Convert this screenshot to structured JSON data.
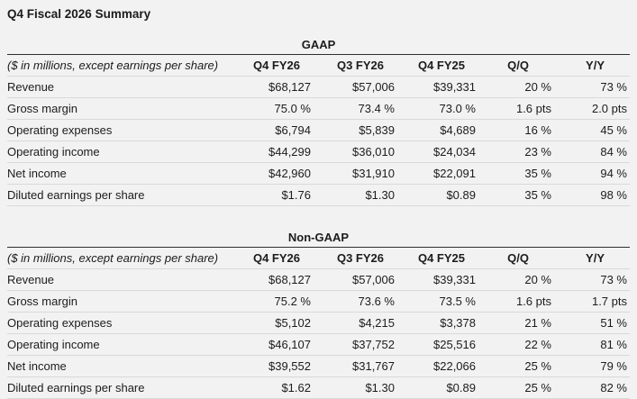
{
  "page_title": "Q4 Fiscal 2026 Summary",
  "colors": {
    "background": "#f2f2f2",
    "text": "#1c1c1c",
    "rule_dark": "#2e2e2e",
    "rule_light": "#d9d9d9"
  },
  "tables": [
    {
      "section_title": "GAAP",
      "note": "($ in millions, except earnings per share)",
      "columns": [
        "Q4 FY26",
        "Q3 FY26",
        "Q4 FY25",
        "Q/Q",
        "Y/Y"
      ],
      "rows": [
        {
          "label": "Revenue",
          "values": [
            "$68,127",
            "$57,006",
            "$39,331",
            "20 %",
            "73 %"
          ]
        },
        {
          "label": "Gross margin",
          "values": [
            "75.0 %",
            "73.4 %",
            "73.0 %",
            "1.6 pts",
            "2.0 pts"
          ]
        },
        {
          "label": "Operating expenses",
          "values": [
            "$6,794",
            "$5,839",
            "$4,689",
            "16 %",
            "45 %"
          ]
        },
        {
          "label": "Operating income",
          "values": [
            "$44,299",
            "$36,010",
            "$24,034",
            "23 %",
            "84 %"
          ]
        },
        {
          "label": "Net income",
          "values": [
            "$42,960",
            "$31,910",
            "$22,091",
            "35 %",
            "94 %"
          ]
        },
        {
          "label": "Diluted earnings per share",
          "values": [
            "$1.76",
            "$1.30",
            "$0.89",
            "35 %",
            "98 %"
          ]
        }
      ]
    },
    {
      "section_title": "Non-GAAP",
      "note": "($ in millions, except earnings per share)",
      "columns": [
        "Q4 FY26",
        "Q3 FY26",
        "Q4 FY25",
        "Q/Q",
        "Y/Y"
      ],
      "rows": [
        {
          "label": "Revenue",
          "values": [
            "$68,127",
            "$57,006",
            "$39,331",
            "20 %",
            "73 %"
          ]
        },
        {
          "label": "Gross margin",
          "values": [
            "75.2 %",
            "73.6 %",
            "73.5 %",
            "1.6 pts",
            "1.7 pts"
          ]
        },
        {
          "label": "Operating expenses",
          "values": [
            "$5,102",
            "$4,215",
            "$3,378",
            "21 %",
            "51 %"
          ]
        },
        {
          "label": "Operating income",
          "values": [
            "$46,107",
            "$37,752",
            "$25,516",
            "22 %",
            "81 %"
          ]
        },
        {
          "label": "Net income",
          "values": [
            "$39,552",
            "$31,767",
            "$22,066",
            "25 %",
            "79 %"
          ]
        },
        {
          "label": "Diluted earnings per share",
          "values": [
            "$1.62",
            "$1.30",
            "$0.89",
            "25 %",
            "82 %"
          ]
        }
      ]
    }
  ]
}
